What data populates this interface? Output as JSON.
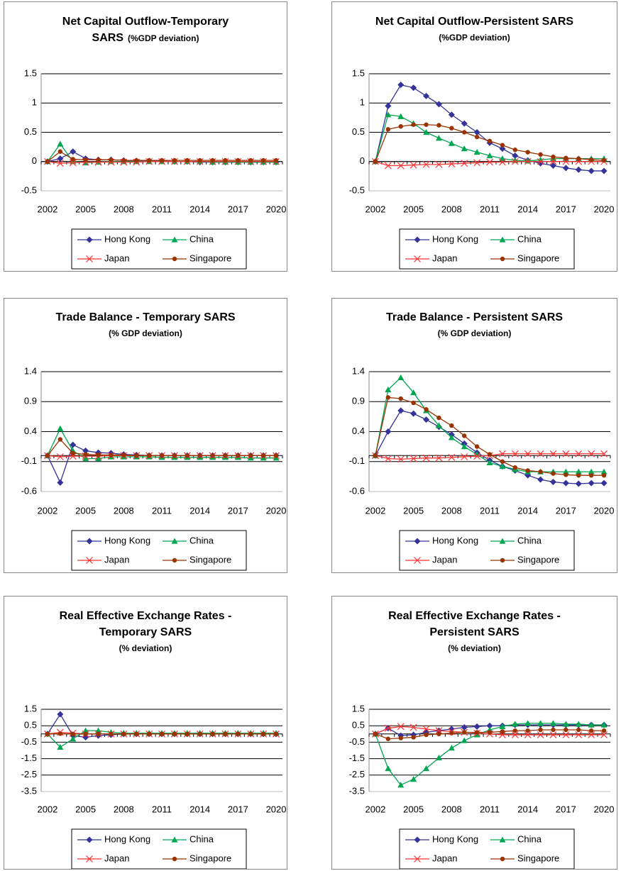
{
  "chart_data": [
    {
      "type": "line",
      "title": "Net Capital Outflow-Temporary SARS",
      "subtitle": "(%GDP deviation)",
      "x": [
        2002,
        2003,
        2004,
        2005,
        2006,
        2007,
        2008,
        2009,
        2010,
        2011,
        2012,
        2013,
        2014,
        2015,
        2016,
        2017,
        2018,
        2019,
        2020
      ],
      "xlim": [
        2002,
        2020
      ],
      "xticks": [
        2002,
        2005,
        2008,
        2011,
        2014,
        2017,
        2020
      ],
      "ylim": [
        -0.5,
        1.5
      ],
      "yticks": [
        -0.5,
        0,
        0.5,
        1,
        1.5
      ],
      "grid": true,
      "series": [
        {
          "name": "Hong Kong",
          "color": "#333399",
          "marker": "diamond",
          "values": [
            0,
            0.05,
            0.17,
            0.05,
            0.03,
            0.03,
            0.02,
            0.01,
            0.01,
            0.01,
            0,
            0,
            -0.01,
            -0.01,
            -0.01,
            -0.01,
            -0.01,
            -0.01,
            -0.01
          ]
        },
        {
          "name": "China",
          "color": "#00a651",
          "marker": "triangle",
          "values": [
            0,
            0.3,
            0,
            -0.02,
            -0.01,
            0,
            0,
            0,
            0,
            0,
            0,
            0,
            0,
            -0.01,
            -0.01,
            -0.01,
            -0.01,
            -0.01,
            -0.01
          ]
        },
        {
          "name": "Japan",
          "color": "#ff3333",
          "marker": "x",
          "values": [
            0,
            -0.03,
            -0.02,
            -0.01,
            -0.01,
            -0.01,
            -0.01,
            -0.01,
            0,
            0,
            0,
            0,
            0,
            0,
            0,
            0,
            0,
            0,
            0
          ]
        },
        {
          "name": "Singapore",
          "color": "#993300",
          "marker": "circle",
          "values": [
            0,
            0.17,
            0.04,
            0.03,
            0.03,
            0.03,
            0.02,
            0.02,
            0.02,
            0.02,
            0.02,
            0.02,
            0.02,
            0.02,
            0.02,
            0.02,
            0.02,
            0.02,
            0.02
          ]
        }
      ]
    },
    {
      "type": "line",
      "title": "Net Capital Outflow-Persistent SARS",
      "subtitle": "(%GDP deviation)",
      "x": [
        2002,
        2003,
        2004,
        2005,
        2006,
        2007,
        2008,
        2009,
        2010,
        2011,
        2012,
        2013,
        2014,
        2015,
        2016,
        2017,
        2018,
        2019,
        2020
      ],
      "xlim": [
        2002,
        2020
      ],
      "xticks": [
        2002,
        2005,
        2008,
        2011,
        2014,
        2017,
        2020
      ],
      "ylim": [
        -0.5,
        1.5
      ],
      "yticks": [
        -0.5,
        0,
        0.5,
        1,
        1.5
      ],
      "grid": true,
      "series": [
        {
          "name": "Hong Kong",
          "color": "#333399",
          "marker": "diamond",
          "values": [
            0,
            0.95,
            1.31,
            1.26,
            1.12,
            0.98,
            0.8,
            0.65,
            0.5,
            0.32,
            0.22,
            0.1,
            0.02,
            -0.03,
            -0.07,
            -0.11,
            -0.14,
            -0.16,
            -0.16
          ]
        },
        {
          "name": "China",
          "color": "#00a651",
          "marker": "triangle",
          "values": [
            0,
            0.8,
            0.77,
            0.65,
            0.5,
            0.4,
            0.31,
            0.22,
            0.16,
            0.1,
            0.05,
            0.02,
            0.01,
            0.03,
            0.05,
            0.05,
            0.05,
            0.05,
            0.05
          ]
        },
        {
          "name": "Japan",
          "color": "#ff3333",
          "marker": "x",
          "values": [
            0,
            -0.07,
            -0.07,
            -0.06,
            -0.05,
            -0.05,
            -0.04,
            -0.03,
            -0.02,
            -0.01,
            -0.01,
            0,
            0,
            0,
            0,
            0,
            0,
            0,
            0
          ]
        },
        {
          "name": "Singapore",
          "color": "#993300",
          "marker": "circle",
          "values": [
            0,
            0.55,
            0.6,
            0.63,
            0.63,
            0.62,
            0.57,
            0.5,
            0.42,
            0.35,
            0.28,
            0.2,
            0.16,
            0.12,
            0.08,
            0.06,
            0.05,
            0.03,
            0.02
          ]
        }
      ]
    },
    {
      "type": "line",
      "title": "Trade Balance - Temporary SARS",
      "subtitle": "(% GDP deviation)",
      "x": [
        2002,
        2003,
        2004,
        2005,
        2006,
        2007,
        2008,
        2009,
        2010,
        2011,
        2012,
        2013,
        2014,
        2015,
        2016,
        2017,
        2018,
        2019,
        2020
      ],
      "xlim": [
        2002,
        2020
      ],
      "xticks": [
        2002,
        2005,
        2008,
        2011,
        2014,
        2017,
        2020
      ],
      "ylim": [
        -0.6,
        1.4
      ],
      "yticks": [
        -0.6,
        -0.1,
        0.4,
        0.9,
        1.4
      ],
      "grid": true,
      "series": [
        {
          "name": "Hong Kong",
          "color": "#333399",
          "marker": "diamond",
          "values": [
            0,
            -0.45,
            0.18,
            0.08,
            0.05,
            0.04,
            0.02,
            0.01,
            0,
            0,
            0,
            0,
            0,
            0,
            0,
            0,
            0,
            0,
            0
          ]
        },
        {
          "name": "China",
          "color": "#00a651",
          "marker": "triangle",
          "values": [
            0,
            0.45,
            0.08,
            -0.05,
            -0.05,
            -0.02,
            -0.02,
            -0.02,
            -0.02,
            -0.03,
            -0.03,
            -0.03,
            -0.03,
            -0.03,
            -0.03,
            -0.03,
            -0.04,
            -0.04,
            -0.04
          ]
        },
        {
          "name": "Japan",
          "color": "#ff3333",
          "marker": "x",
          "values": [
            0,
            -0.02,
            -0.01,
            -0.01,
            -0.01,
            0,
            0,
            0,
            0,
            0,
            0,
            0,
            0,
            0,
            0,
            0,
            0,
            0,
            0
          ]
        },
        {
          "name": "Singapore",
          "color": "#993300",
          "marker": "circle",
          "values": [
            0,
            0.27,
            0.04,
            0.02,
            0.01,
            0.01,
            0.01,
            0,
            0,
            0,
            0,
            0,
            0,
            0,
            0,
            0,
            0,
            0,
            0
          ]
        }
      ]
    },
    {
      "type": "line",
      "title": "Trade Balance - Persistent SARS",
      "subtitle": "(% GDP deviation)",
      "x": [
        2002,
        2003,
        2004,
        2005,
        2006,
        2007,
        2008,
        2009,
        2010,
        2011,
        2012,
        2013,
        2014,
        2015,
        2016,
        2017,
        2018,
        2019,
        2020
      ],
      "xlim": [
        2002,
        2020
      ],
      "xticks": [
        2002,
        2005,
        2008,
        2011,
        2014,
        2017,
        2020
      ],
      "ylim": [
        -0.6,
        1.4
      ],
      "yticks": [
        -0.6,
        -0.1,
        0.4,
        0.9,
        1.4
      ],
      "grid": true,
      "series": [
        {
          "name": "Hong Kong",
          "color": "#333399",
          "marker": "diamond",
          "values": [
            0,
            0.4,
            0.75,
            0.7,
            0.6,
            0.48,
            0.35,
            0.2,
            0.05,
            -0.08,
            -0.18,
            -0.25,
            -0.33,
            -0.4,
            -0.44,
            -0.46,
            -0.47,
            -0.46,
            -0.46
          ]
        },
        {
          "name": "China",
          "color": "#00a651",
          "marker": "triangle",
          "values": [
            0,
            1.1,
            1.3,
            1.05,
            0.75,
            0.5,
            0.3,
            0.15,
            0.02,
            -0.12,
            -0.18,
            -0.23,
            -0.27,
            -0.27,
            -0.27,
            -0.27,
            -0.27,
            -0.27,
            -0.27
          ]
        },
        {
          "name": "Japan",
          "color": "#ff3333",
          "marker": "x",
          "values": [
            0,
            -0.05,
            -0.06,
            -0.05,
            -0.04,
            -0.04,
            -0.03,
            -0.02,
            -0.01,
            0,
            0.03,
            0.03,
            0.03,
            0.03,
            0.03,
            0.03,
            0.03,
            0.03,
            0.03
          ]
        },
        {
          "name": "Singapore",
          "color": "#993300",
          "marker": "circle",
          "values": [
            0,
            0.97,
            0.95,
            0.88,
            0.77,
            0.63,
            0.5,
            0.33,
            0.15,
            0.02,
            -0.1,
            -0.2,
            -0.25,
            -0.27,
            -0.3,
            -0.32,
            -0.33,
            -0.33,
            -0.33
          ]
        }
      ]
    },
    {
      "type": "line",
      "title": "Real Effective Exchange Rates - Temporary SARS",
      "subtitle": "(% deviation)",
      "x": [
        2002,
        2003,
        2004,
        2005,
        2006,
        2007,
        2008,
        2009,
        2010,
        2011,
        2012,
        2013,
        2014,
        2015,
        2016,
        2017,
        2018,
        2019,
        2020
      ],
      "xlim": [
        2002,
        2020
      ],
      "xticks": [
        2002,
        2005,
        2008,
        2011,
        2014,
        2017,
        2020
      ],
      "ylim": [
        -3.5,
        1.5
      ],
      "yticks": [
        -3.5,
        -2.5,
        -1.5,
        -0.5,
        0.5,
        1.5
      ],
      "grid": true,
      "series": [
        {
          "name": "Hong Kong",
          "color": "#333399",
          "marker": "diamond",
          "values": [
            0,
            1.2,
            -0.1,
            -0.2,
            -0.1,
            -0.05,
            0,
            0,
            0,
            0,
            0,
            0,
            0,
            0,
            0,
            0,
            0,
            0,
            0
          ]
        },
        {
          "name": "China",
          "color": "#00a651",
          "marker": "triangle",
          "values": [
            0,
            -0.8,
            -0.3,
            0.2,
            0.2,
            0.1,
            0.05,
            0.05,
            0.05,
            0.05,
            0.05,
            0.05,
            0.05,
            0.05,
            0.05,
            0.05,
            0.05,
            0.05,
            0.05
          ]
        },
        {
          "name": "Japan",
          "color": "#ff3333",
          "marker": "x",
          "values": [
            0,
            0.1,
            0.05,
            0,
            0,
            0,
            0,
            0,
            0,
            0,
            0,
            0,
            0,
            0,
            0,
            0,
            0,
            0,
            0
          ]
        },
        {
          "name": "Singapore",
          "color": "#993300",
          "marker": "circle",
          "values": [
            0,
            0.02,
            0,
            0,
            0,
            0,
            0,
            0,
            0,
            0,
            0,
            0,
            0,
            0,
            0,
            0,
            0,
            0,
            0
          ]
        }
      ]
    },
    {
      "type": "line",
      "title": "Real Effective Exchange Rates - Persistent SARS",
      "subtitle": "(% deviation)",
      "x": [
        2002,
        2003,
        2004,
        2005,
        2006,
        2007,
        2008,
        2009,
        2010,
        2011,
        2012,
        2013,
        2014,
        2015,
        2016,
        2017,
        2018,
        2019,
        2020
      ],
      "xlim": [
        2002,
        2020
      ],
      "xticks": [
        2002,
        2005,
        2008,
        2011,
        2014,
        2017,
        2020
      ],
      "ylim": [
        -3.5,
        1.5
      ],
      "yticks": [
        -3.5,
        -2.5,
        -1.5,
        -0.5,
        0.5,
        1.5
      ],
      "grid": true,
      "series": [
        {
          "name": "Hong Kong",
          "color": "#333399",
          "marker": "diamond",
          "values": [
            0,
            0.35,
            -0.1,
            -0.05,
            0.1,
            0.2,
            0.3,
            0.4,
            0.45,
            0.5,
            0.5,
            0.55,
            0.55,
            0.55,
            0.55,
            0.55,
            0.55,
            0.55,
            0.55
          ]
        },
        {
          "name": "China",
          "color": "#00a651",
          "marker": "triangle",
          "values": [
            0,
            -2.1,
            -3.1,
            -2.75,
            -2.1,
            -1.45,
            -0.85,
            -0.4,
            -0.05,
            0.25,
            0.45,
            0.6,
            0.65,
            0.65,
            0.65,
            0.6,
            0.6,
            0.55,
            0.55
          ]
        },
        {
          "name": "Japan",
          "color": "#ff3333",
          "marker": "x",
          "values": [
            0,
            0.35,
            0.45,
            0.4,
            0.3,
            0.2,
            0.15,
            0.1,
            0.05,
            0,
            -0.05,
            -0.05,
            -0.05,
            -0.05,
            -0.05,
            -0.05,
            -0.05,
            -0.05,
            -0.05
          ]
        },
        {
          "name": "Singapore",
          "color": "#993300",
          "marker": "circle",
          "values": [
            0,
            -0.3,
            -0.25,
            -0.2,
            -0.05,
            0,
            0.05,
            0.1,
            0.1,
            0.1,
            0.15,
            0.2,
            0.2,
            0.25,
            0.25,
            0.25,
            0.25,
            0.2,
            0.2
          ]
        }
      ]
    }
  ]
}
